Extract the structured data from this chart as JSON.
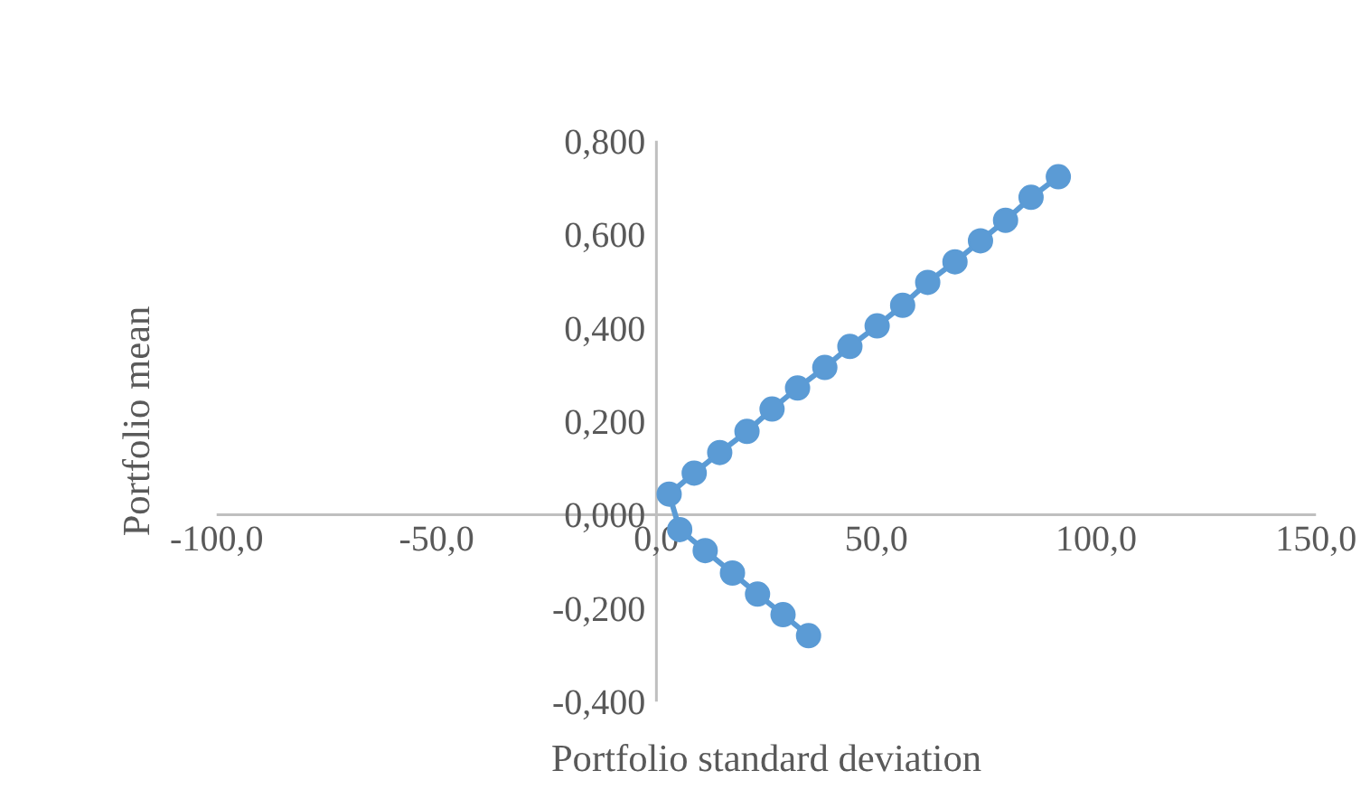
{
  "chart_data": {
    "type": "line",
    "marker": "circle",
    "grid": false,
    "xlabel": "Portfolio standard deviation",
    "ylabel": "Portfolio mean",
    "xlim": [
      -100,
      150
    ],
    "ylim": [
      -0.4,
      0.8
    ],
    "xticks": [
      {
        "value": -100,
        "label": "-100,0"
      },
      {
        "value": -50,
        "label": "-50,0"
      },
      {
        "value": 0,
        "label": "0,0"
      },
      {
        "value": 50,
        "label": "50,0"
      },
      {
        "value": 100,
        "label": "100,0"
      },
      {
        "value": 150,
        "label": "150,0"
      }
    ],
    "yticks": [
      {
        "value": -0.4,
        "label": "-0,400"
      },
      {
        "value": -0.2,
        "label": "-0,200"
      },
      {
        "value": 0,
        "label": "0,000"
      },
      {
        "value": 0.2,
        "label": "0,200"
      },
      {
        "value": 0.4,
        "label": "0,400"
      },
      {
        "value": 0.6,
        "label": "0,600"
      },
      {
        "value": 0.8,
        "label": "0,800"
      }
    ],
    "series": [
      {
        "color": "#5b9bd5",
        "x": [
          34.6,
          28.8,
          23.0,
          17.3,
          11.1,
          5.3,
          2.9,
          8.6,
          14.4,
          20.6,
          26.3,
          32.1,
          38.3,
          44.0,
          50.2,
          56.0,
          61.7,
          67.9,
          73.7,
          79.4,
          85.2,
          91.4
        ],
        "values": [
          -0.259,
          -0.214,
          -0.17,
          -0.125,
          -0.077,
          -0.032,
          0.044,
          0.089,
          0.133,
          0.178,
          0.226,
          0.271,
          0.315,
          0.36,
          0.404,
          0.448,
          0.497,
          0.541,
          0.586,
          0.63,
          0.679,
          0.723
        ]
      }
    ]
  }
}
